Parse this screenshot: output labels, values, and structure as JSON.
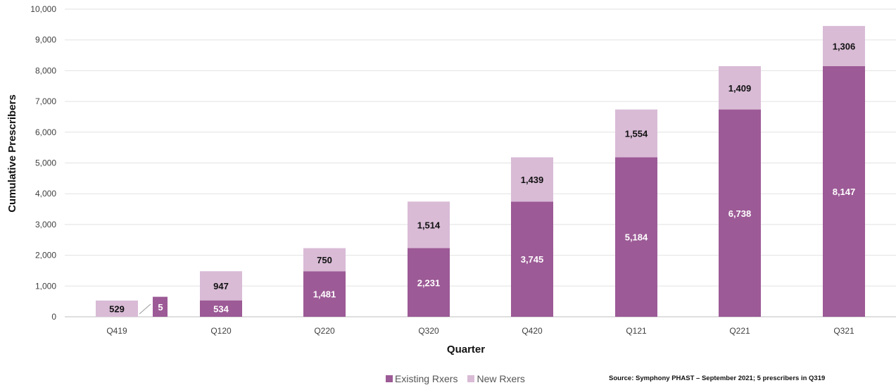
{
  "chart_data": {
    "type": "bar",
    "stacked": true,
    "xlabel": "Quarter",
    "ylabel": "Cumulative Prescribers",
    "ylim": [
      0,
      10000
    ],
    "yticks": [
      0,
      1000,
      2000,
      3000,
      4000,
      5000,
      6000,
      7000,
      8000,
      9000,
      10000
    ],
    "ytick_labels": [
      "0",
      "1,000",
      "2,000",
      "3,000",
      "4,000",
      "5,000",
      "6,000",
      "7,000",
      "8,000",
      "9,000",
      "10,000"
    ],
    "categories": [
      "Q419",
      "Q120",
      "Q220",
      "Q320",
      "Q420",
      "Q121",
      "Q221",
      "Q321"
    ],
    "series": [
      {
        "name": "Existing Rxers",
        "color": "#9c5a96",
        "values": [
          5,
          534,
          1481,
          2231,
          3745,
          5184,
          6738,
          8147
        ],
        "labels": [
          "5",
          "534",
          "1,481",
          "2,231",
          "3,745",
          "5,184",
          "6,738",
          "8,147"
        ]
      },
      {
        "name": "New Rxers",
        "color": "#d9bbd6",
        "values": [
          529,
          947,
          750,
          1514,
          1439,
          1554,
          1409,
          1306
        ],
        "labels": [
          "529",
          "947",
          "750",
          "1,514",
          "1,439",
          "1,554",
          "1,409",
          "1,306"
        ]
      }
    ],
    "q419_existing_bar_value": 650,
    "grid": true,
    "legend_position": "bottom"
  },
  "footer": {
    "source": "Source: Symphony PHAST – September 2021; 5 prescribers in Q319"
  }
}
